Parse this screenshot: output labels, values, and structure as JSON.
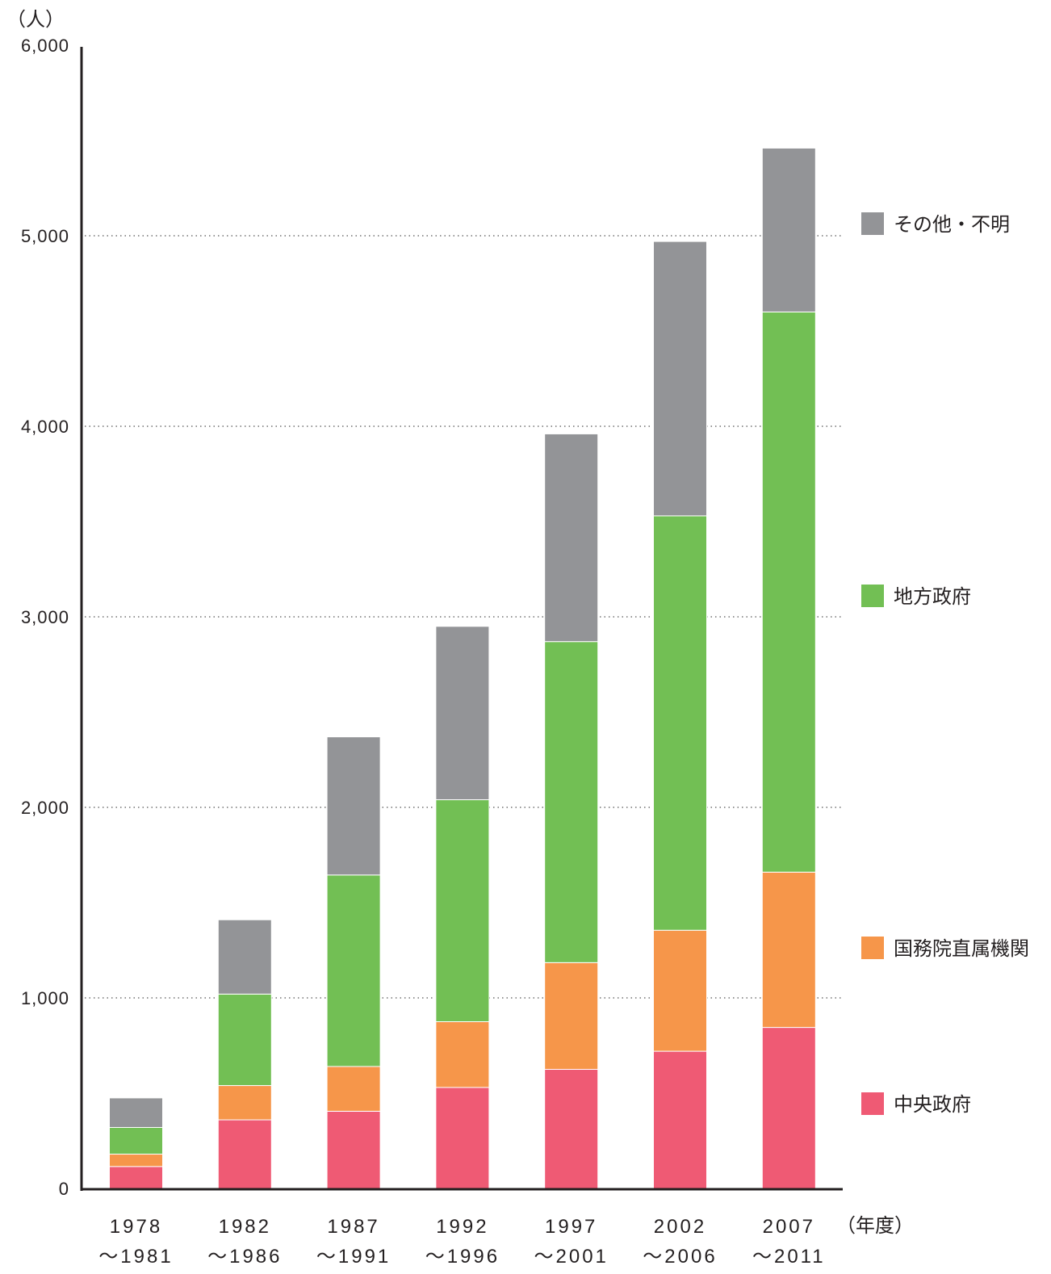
{
  "chart_data": {
    "type": "bar",
    "stacked": true,
    "y_unit_label": "（人）",
    "x_unit_label": "（年度）",
    "ylim": [
      0,
      6000
    ],
    "y_ticks": [
      0,
      1000,
      2000,
      3000,
      4000,
      5000,
      6000
    ],
    "y_tick_labels": [
      "0",
      "1,000",
      "2,000",
      "3,000",
      "4,000",
      "5,000",
      "6,000"
    ],
    "grid": "horizontal dotted",
    "legend_position": "right",
    "categories": [
      {
        "start": "1978",
        "end": "～1981"
      },
      {
        "start": "1982",
        "end": "～1986"
      },
      {
        "start": "1987",
        "end": "～1991"
      },
      {
        "start": "1992",
        "end": "～1996"
      },
      {
        "start": "1997",
        "end": "～2001"
      },
      {
        "start": "2002",
        "end": "～2006"
      },
      {
        "start": "2007",
        "end": "～2011"
      }
    ],
    "series": [
      {
        "name": "中央政府",
        "color": "#ef5a74",
        "values": [
          115,
          360,
          405,
          530,
          625,
          720,
          845
        ]
      },
      {
        "name": "国務院直属機関",
        "color": "#f6964a",
        "values": [
          65,
          180,
          235,
          345,
          560,
          635,
          815
        ]
      },
      {
        "name": "地方政府",
        "color": "#72bf54",
        "values": [
          140,
          480,
          1005,
          1165,
          1685,
          2175,
          2940
        ]
      },
      {
        "name": "その他・不明",
        "color": "#939497",
        "values": [
          155,
          390,
          725,
          910,
          1090,
          1440,
          860
        ]
      }
    ]
  }
}
